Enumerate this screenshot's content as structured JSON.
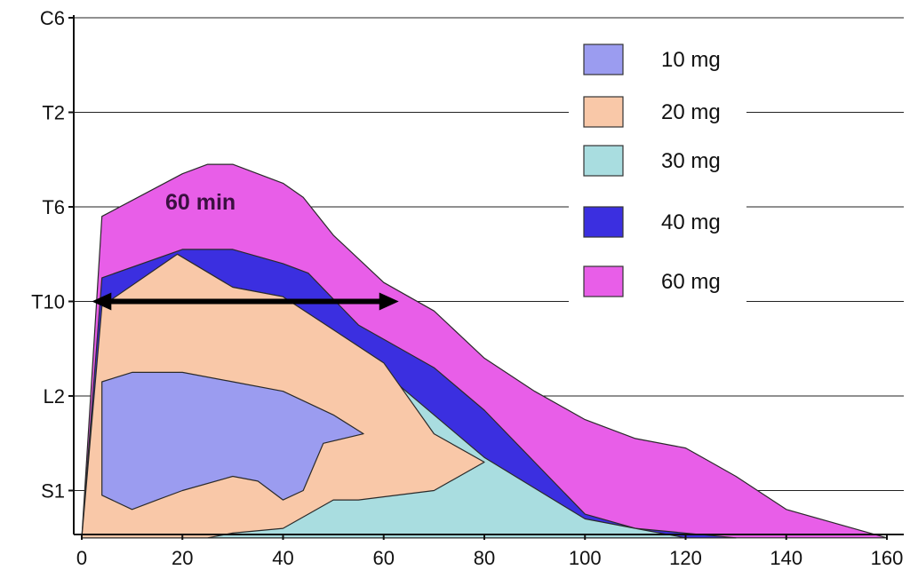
{
  "chart_data": {
    "type": "area",
    "title": "",
    "xlabel": "",
    "ylabel": "",
    "xlim": [
      0,
      160
    ],
    "x_ticks": [
      0,
      20,
      40,
      60,
      80,
      100,
      120,
      140,
      160
    ],
    "y_levels": [
      "C6",
      "T2",
      "T6",
      "T10",
      "L2",
      "S1"
    ],
    "y_level_values": [
      5,
      4,
      3,
      2,
      1,
      0
    ],
    "ylim": [
      -0.5,
      5
    ],
    "grid": "horizontal",
    "legend_position": "top-right",
    "series": [
      {
        "name": "60 mg",
        "color": "#e85ee8",
        "polygon": [
          [
            0,
            -0.5
          ],
          [
            4,
            2.9
          ],
          [
            20,
            3.35
          ],
          [
            25,
            3.45
          ],
          [
            30,
            3.45
          ],
          [
            40,
            3.25
          ],
          [
            44,
            3.1
          ],
          [
            50,
            2.7
          ],
          [
            60,
            2.2
          ],
          [
            70,
            1.9
          ],
          [
            80,
            1.4
          ],
          [
            90,
            1.05
          ],
          [
            100,
            0.75
          ],
          [
            110,
            0.55
          ],
          [
            120,
            0.45
          ],
          [
            125,
            0.3
          ],
          [
            130,
            0.15
          ],
          [
            140,
            -0.2
          ],
          [
            160,
            -0.5
          ],
          [
            0,
            -0.5
          ]
        ]
      },
      {
        "name": "40 mg",
        "color": "#3b2fe0",
        "polygon": [
          [
            0,
            -0.5
          ],
          [
            4,
            2.25
          ],
          [
            20,
            2.55
          ],
          [
            30,
            2.55
          ],
          [
            40,
            2.4
          ],
          [
            45,
            2.3
          ],
          [
            55,
            1.75
          ],
          [
            60,
            1.6
          ],
          [
            70,
            1.3
          ],
          [
            80,
            0.85
          ],
          [
            90,
            0.3
          ],
          [
            100,
            -0.25
          ],
          [
            110,
            -0.4
          ],
          [
            130,
            -0.5
          ],
          [
            0,
            -0.5
          ]
        ]
      },
      {
        "name": "30 mg",
        "color": "#a9dde0",
        "polygon": [
          [
            22,
            2.3
          ],
          [
            30,
            2.15
          ],
          [
            40,
            2.05
          ],
          [
            50,
            1.55
          ],
          [
            60,
            1.25
          ],
          [
            80,
            0.35
          ],
          [
            100,
            -0.3
          ],
          [
            110,
            -0.4
          ],
          [
            120,
            -0.5
          ],
          [
            25,
            -0.5
          ]
        ]
      },
      {
        "name": "20 mg",
        "color": "#f9c8a8",
        "polygon": [
          [
            0,
            -0.5
          ],
          [
            4,
            1.95
          ],
          [
            19,
            2.5
          ],
          [
            30,
            2.15
          ],
          [
            40,
            2.05
          ],
          [
            50,
            1.7
          ],
          [
            60,
            1.35
          ],
          [
            70,
            0.6
          ],
          [
            80,
            0.3
          ],
          [
            70,
            0.0
          ],
          [
            55,
            -0.1
          ],
          [
            50,
            -0.1
          ],
          [
            40,
            -0.4
          ],
          [
            30,
            -0.45
          ],
          [
            25,
            -0.5
          ],
          [
            0,
            -0.5
          ]
        ]
      },
      {
        "name": "10 mg",
        "color": "#9b9cf0",
        "polygon": [
          [
            4,
            1.15
          ],
          [
            10,
            1.25
          ],
          [
            20,
            1.25
          ],
          [
            30,
            1.15
          ],
          [
            40,
            1.05
          ],
          [
            50,
            0.8
          ],
          [
            56,
            0.6
          ],
          [
            48,
            0.5
          ],
          [
            44,
            0.0
          ],
          [
            40,
            -0.1
          ],
          [
            35,
            0.1
          ],
          [
            30,
            0.15
          ],
          [
            20,
            0.0
          ],
          [
            15,
            -0.1
          ],
          [
            10,
            -0.2
          ],
          [
            4,
            -0.05
          ]
        ]
      }
    ],
    "annotation": {
      "text": "60 min",
      "arrow_from": [
        2,
        2
      ],
      "arrow_to": [
        63,
        2
      ]
    }
  }
}
